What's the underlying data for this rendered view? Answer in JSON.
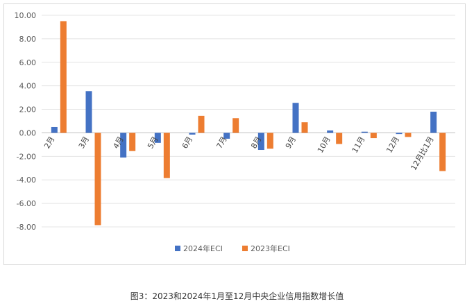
{
  "chart_data": {
    "type": "bar",
    "categories": [
      "2月",
      "3月",
      "4月",
      "5月",
      "6月",
      "7月",
      "8月",
      "9月",
      "10月",
      "11月",
      "12月",
      "12月比1月"
    ],
    "series": [
      {
        "name": "2024年ECI",
        "color": "#4472c4",
        "values": [
          0.5,
          3.55,
          -2.1,
          -0.85,
          -0.15,
          -0.5,
          -1.45,
          2.55,
          0.2,
          0.1,
          -0.1,
          1.8
        ]
      },
      {
        "name": "2023年ECI",
        "color": "#ed7d31",
        "values": [
          9.5,
          -7.85,
          -1.55,
          -3.85,
          1.45,
          1.25,
          -1.35,
          0.9,
          -0.95,
          -0.45,
          -0.35,
          -3.25
        ]
      }
    ],
    "ylim": [
      -8,
      10
    ],
    "yticks": [
      "10.00",
      "8.00",
      "6.00",
      "4.00",
      "2.00",
      "0.00",
      "-2.00",
      "-4.00",
      "-6.00",
      "-8.00"
    ],
    "grid": true,
    "legend": "bottom",
    "xlabel": "",
    "ylabel": ""
  },
  "caption": "图3：2023和2024年1月至12月中央企业信用指数增长值"
}
